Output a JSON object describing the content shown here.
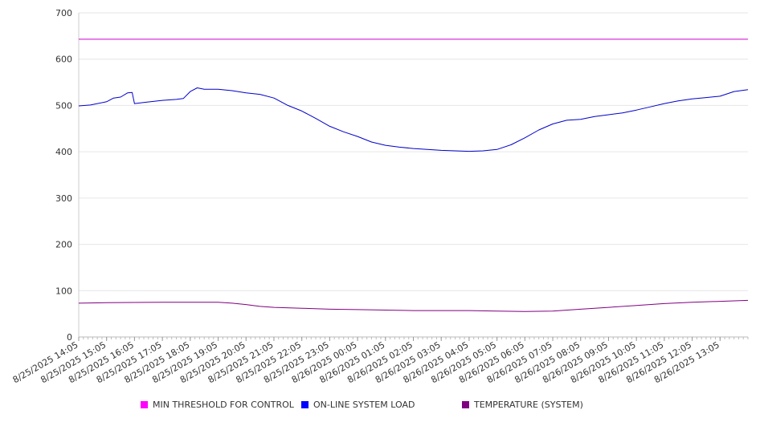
{
  "chart_data": {
    "type": "line",
    "title": "",
    "xlabel": "",
    "ylabel": "",
    "ylim": [
      0,
      700
    ],
    "yticks": [
      0,
      100,
      200,
      300,
      400,
      500,
      600,
      700
    ],
    "grid": true,
    "legend_position": "bottom",
    "x_tick_labels": [
      "8/25/2025 14:05",
      "8/25/2025 15:05",
      "8/25/2025 16:05",
      "8/25/2025 17:05",
      "8/25/2025 18:05",
      "8/25/2025 19:05",
      "8/25/2025 20:05",
      "8/25/2025 21:05",
      "8/25/2025 22:05",
      "8/25/2025 23:05",
      "8/26/2025 00:05",
      "8/26/2025 01:05",
      "8/26/2025 02:05",
      "8/26/2025 03:05",
      "8/26/2025 04:05",
      "8/26/2025 05:05",
      "8/26/2025 06:05",
      "8/26/2025 07:05",
      "8/26/2025 08:05",
      "8/26/2025 09:05",
      "8/26/2025 10:05",
      "8/26/2025 11:05",
      "8/26/2025 12:05",
      "8/26/2025 13:05"
    ],
    "x_time_range": [
      "8/25/2025 14:05",
      "8/26/2025 14:05"
    ],
    "series": [
      {
        "name": "MIN THRESHOLD FOR CONTROL",
        "color": "#cc00cc",
        "points": [
          [
            "8/25/2025 14:05",
            643
          ],
          [
            "8/26/2025 14:05",
            643
          ]
        ]
      },
      {
        "name": "ON-LINE SYSTEM LOAD",
        "color": "#0000cc",
        "points": [
          [
            "8/25/2025 14:05",
            499
          ],
          [
            "8/25/2025 14:30",
            501
          ],
          [
            "8/25/2025 15:05",
            508
          ],
          [
            "8/25/2025 15:20",
            516
          ],
          [
            "8/25/2025 15:35",
            518
          ],
          [
            "8/25/2025 15:50",
            527
          ],
          [
            "8/25/2025 16:00",
            528
          ],
          [
            "8/25/2025 16:05",
            504
          ],
          [
            "8/25/2025 16:30",
            507
          ],
          [
            "8/25/2025 17:05",
            511
          ],
          [
            "8/25/2025 17:35",
            513
          ],
          [
            "8/25/2025 17:50",
            515
          ],
          [
            "8/25/2025 18:05",
            530
          ],
          [
            "8/25/2025 18:20",
            538
          ],
          [
            "8/25/2025 18:35",
            535
          ],
          [
            "8/25/2025 19:05",
            535
          ],
          [
            "8/25/2025 19:35",
            532
          ],
          [
            "8/25/2025 20:05",
            527
          ],
          [
            "8/25/2025 20:35",
            524
          ],
          [
            "8/25/2025 21:05",
            516
          ],
          [
            "8/25/2025 21:35",
            500
          ],
          [
            "8/25/2025 22:05",
            488
          ],
          [
            "8/25/2025 22:35",
            472
          ],
          [
            "8/25/2025 23:05",
            455
          ],
          [
            "8/25/2025 23:35",
            443
          ],
          [
            "8/26/2025 00:05",
            433
          ],
          [
            "8/26/2025 00:35",
            421
          ],
          [
            "8/26/2025 01:05",
            414
          ],
          [
            "8/26/2025 01:35",
            410
          ],
          [
            "8/26/2025 02:05",
            407
          ],
          [
            "8/26/2025 02:35",
            405
          ],
          [
            "8/26/2025 03:05",
            403
          ],
          [
            "8/26/2025 03:35",
            402
          ],
          [
            "8/26/2025 04:05",
            401
          ],
          [
            "8/26/2025 04:35",
            402
          ],
          [
            "8/26/2025 05:05",
            405
          ],
          [
            "8/26/2025 05:35",
            415
          ],
          [
            "8/26/2025 06:05",
            430
          ],
          [
            "8/26/2025 06:35",
            447
          ],
          [
            "8/26/2025 07:05",
            460
          ],
          [
            "8/26/2025 07:35",
            468
          ],
          [
            "8/26/2025 08:05",
            470
          ],
          [
            "8/26/2025 08:35",
            476
          ],
          [
            "8/26/2025 09:05",
            480
          ],
          [
            "8/26/2025 09:35",
            484
          ],
          [
            "8/26/2025 10:05",
            490
          ],
          [
            "8/26/2025 10:35",
            497
          ],
          [
            "8/26/2025 11:05",
            504
          ],
          [
            "8/26/2025 11:35",
            510
          ],
          [
            "8/26/2025 12:05",
            514
          ],
          [
            "8/26/2025 12:35",
            517
          ],
          [
            "8/26/2025 13:05",
            520
          ],
          [
            "8/26/2025 13:35",
            530
          ],
          [
            "8/26/2025 14:05",
            534
          ]
        ]
      },
      {
        "name": "TEMPERATURE (SYSTEM)",
        "color": "#800080",
        "points": [
          [
            "8/25/2025 14:05",
            73
          ],
          [
            "8/25/2025 15:05",
            74
          ],
          [
            "8/25/2025 17:05",
            75
          ],
          [
            "8/25/2025 19:05",
            75
          ],
          [
            "8/25/2025 19:35",
            73
          ],
          [
            "8/25/2025 20:05",
            70
          ],
          [
            "8/25/2025 20:35",
            66
          ],
          [
            "8/25/2025 21:05",
            64
          ],
          [
            "8/25/2025 22:05",
            62
          ],
          [
            "8/25/2025 23:05",
            60
          ],
          [
            "8/26/2025 00:05",
            59
          ],
          [
            "8/26/2025 01:05",
            58
          ],
          [
            "8/26/2025 02:05",
            57
          ],
          [
            "8/26/2025 04:05",
            57
          ],
          [
            "8/26/2025 05:05",
            56
          ],
          [
            "8/26/2025 06:05",
            55
          ],
          [
            "8/26/2025 07:05",
            56
          ],
          [
            "8/26/2025 08:05",
            60
          ],
          [
            "8/26/2025 09:05",
            64
          ],
          [
            "8/26/2025 10:05",
            68
          ],
          [
            "8/26/2025 11:05",
            72
          ],
          [
            "8/26/2025 12:05",
            75
          ],
          [
            "8/26/2025 13:05",
            77
          ],
          [
            "8/26/2025 14:05",
            79
          ]
        ]
      }
    ]
  }
}
